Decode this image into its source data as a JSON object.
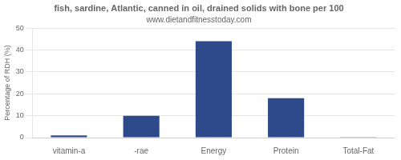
{
  "chart_data": {
    "type": "bar",
    "title": "fish, sardine, Atlantic, canned in oil, drained solids with bone per 100",
    "subtitle": "www.dietandfitnesstoday.com",
    "categories": [
      "vitamin-a",
      "-rae",
      "Energy",
      "Protein",
      "Total-Fat"
    ],
    "values": [
      1,
      10,
      44,
      18,
      0.3
    ],
    "color": "#2e4a8b",
    "ylabel": "Percentage of RDH (%)",
    "ylim": [
      0,
      50
    ],
    "yticks": [
      0,
      10,
      20,
      30,
      40,
      50
    ],
    "grid": true
  }
}
